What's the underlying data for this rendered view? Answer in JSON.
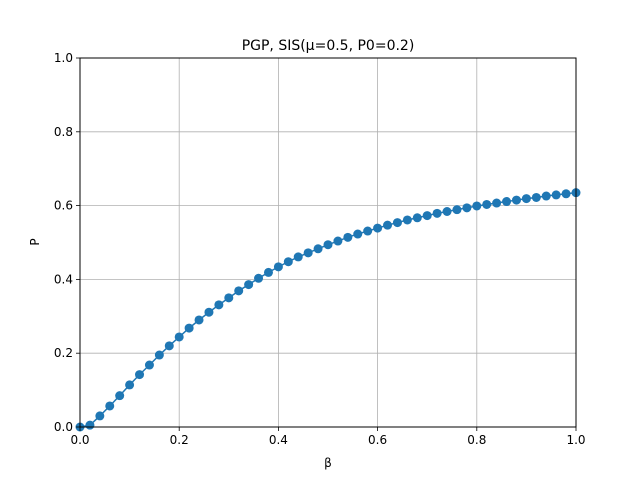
{
  "chart_data": {
    "type": "line",
    "title": "PGP, SIS(μ=0.5, P0=0.2)",
    "xlabel": "β",
    "ylabel": "P",
    "xlim": [
      0,
      1
    ],
    "ylim": [
      0,
      1
    ],
    "xticks": [
      "0.0",
      "0.2",
      "0.4",
      "0.6",
      "0.8",
      "1.0"
    ],
    "yticks": [
      "0.0",
      "0.2",
      "0.4",
      "0.6",
      "0.8",
      "1.0"
    ],
    "grid": true,
    "marker": "circle",
    "series": [
      {
        "color": "#1f77b4",
        "x": [
          0.0,
          0.02,
          0.04,
          0.06,
          0.08,
          0.1,
          0.12,
          0.14,
          0.16,
          0.18,
          0.2,
          0.22,
          0.24,
          0.26,
          0.28,
          0.3,
          0.32,
          0.34,
          0.36,
          0.38,
          0.4,
          0.42,
          0.44,
          0.46,
          0.48,
          0.5,
          0.52,
          0.54,
          0.56,
          0.58,
          0.6,
          0.62,
          0.64,
          0.66,
          0.68,
          0.7,
          0.72,
          0.74,
          0.76,
          0.78,
          0.8,
          0.82,
          0.84,
          0.86,
          0.88,
          0.9,
          0.92,
          0.94,
          0.96,
          0.98,
          1.0
        ],
        "y": [
          0.0,
          0.005,
          0.03,
          0.057,
          0.085,
          0.114,
          0.142,
          0.168,
          0.195,
          0.22,
          0.244,
          0.268,
          0.29,
          0.311,
          0.331,
          0.35,
          0.369,
          0.386,
          0.403,
          0.419,
          0.434,
          0.448,
          0.461,
          0.472,
          0.483,
          0.494,
          0.504,
          0.514,
          0.523,
          0.531,
          0.539,
          0.547,
          0.554,
          0.561,
          0.567,
          0.573,
          0.579,
          0.584,
          0.589,
          0.594,
          0.599,
          0.603,
          0.607,
          0.611,
          0.615,
          0.619,
          0.622,
          0.626,
          0.629,
          0.632,
          0.635
        ]
      }
    ]
  }
}
